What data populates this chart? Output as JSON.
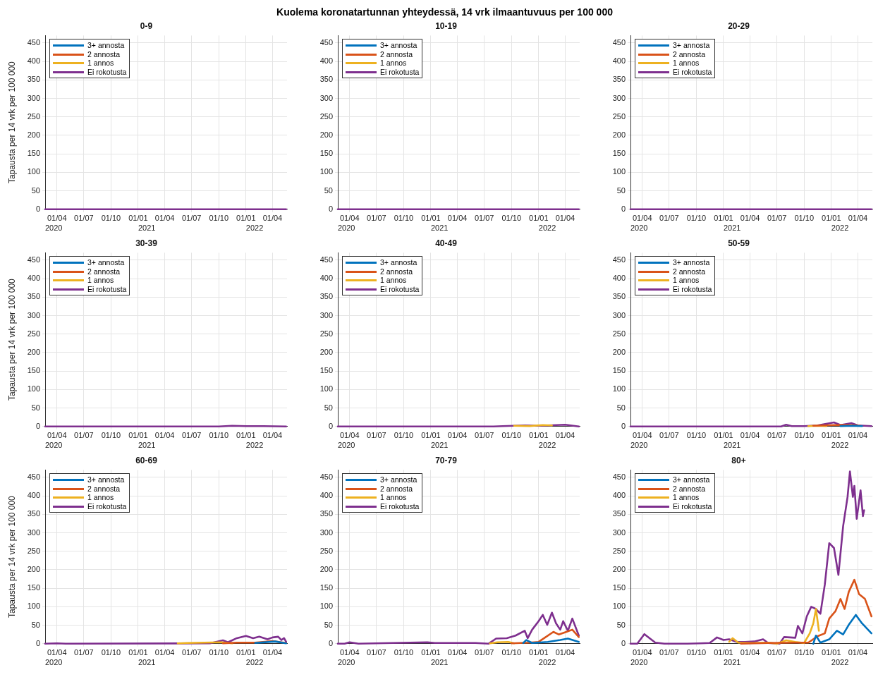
{
  "chart_data": [
    {
      "type": "line",
      "title": "0-9",
      "ylabel": "Tapausta per 14 vrk per 100 000",
      "annotations": [
        "2020",
        "2021",
        "2022",
        "Kuolema koronatartunnan yhteydessä, 14 vrk ilmaantuvuus per 100 000"
      ],
      "xlim": [
        "2020-02-21",
        "2022-05-20"
      ],
      "xticks": [
        {
          "value": "2020-04-01",
          "label": "01/04"
        },
        {
          "value": "2020-07-01",
          "label": "01/07"
        },
        {
          "value": "2020-10-01",
          "label": "01/10"
        },
        {
          "value": "2021-01-01",
          "label": "01/01"
        },
        {
          "value": "2021-04-01",
          "label": "01/04"
        },
        {
          "value": "2021-07-01",
          "label": "01/07"
        },
        {
          "value": "2021-10-01",
          "label": "01/10"
        },
        {
          "value": "2022-01-01",
          "label": "01/01"
        },
        {
          "value": "2022-04-01",
          "label": "01/04"
        }
      ],
      "ylim": [
        0,
        470
      ],
      "yticks": [
        0,
        50,
        100,
        150,
        200,
        250,
        300,
        350,
        400,
        450
      ],
      "grid": true,
      "legend": "top left",
      "series": [
        {
          "name": "3+ annosta",
          "color": "#0072bd"
        },
        {
          "name": "2 annosta",
          "color": "#d95319"
        },
        {
          "name": "1 annos",
          "color": "#edb120"
        },
        {
          "name": "Ei rokotusta",
          "color": "#7e2f8e",
          "x": [
            "2020-02-21",
            "2022-05-17"
          ],
          "values": [
            0,
            0
          ]
        }
      ]
    },
    {
      "type": "line",
      "title": "10-19",
      "annotations": [
        "2020",
        "2021",
        "2022"
      ],
      "xlim": [
        "2020-02-21",
        "2022-05-20"
      ],
      "xticks": [
        {
          "value": "2020-04-01",
          "label": "01/04"
        },
        {
          "value": "2020-07-01",
          "label": "01/07"
        },
        {
          "value": "2020-10-01",
          "label": "01/10"
        },
        {
          "value": "2021-01-01",
          "label": "01/01"
        },
        {
          "value": "2021-04-01",
          "label": "01/04"
        },
        {
          "value": "2021-07-01",
          "label": "01/07"
        },
        {
          "value": "2021-10-01",
          "label": "01/10"
        },
        {
          "value": "2022-01-01",
          "label": "01/01"
        },
        {
          "value": "2022-04-01",
          "label": "01/04"
        }
      ],
      "ylim": [
        0,
        470
      ],
      "yticks": [
        0,
        50,
        100,
        150,
        200,
        250,
        300,
        350,
        400,
        450
      ],
      "grid": true,
      "legend": "top left",
      "series": [
        {
          "name": "3+ annosta",
          "color": "#0072bd"
        },
        {
          "name": "2 annosta",
          "color": "#d95319"
        },
        {
          "name": "1 annos",
          "color": "#edb120"
        },
        {
          "name": "Ei rokotusta",
          "color": "#7e2f8e",
          "x": [
            "2020-02-21",
            "2022-05-17"
          ],
          "values": [
            0,
            0
          ]
        }
      ]
    },
    {
      "type": "line",
      "title": "20-29",
      "annotations": [
        "2020",
        "2021",
        "2022"
      ],
      "xlim": [
        "2020-02-21",
        "2022-05-20"
      ],
      "xticks": [
        {
          "value": "2020-04-01",
          "label": "01/04"
        },
        {
          "value": "2020-07-01",
          "label": "01/07"
        },
        {
          "value": "2020-10-01",
          "label": "01/10"
        },
        {
          "value": "2021-01-01",
          "label": "01/01"
        },
        {
          "value": "2021-04-01",
          "label": "01/04"
        },
        {
          "value": "2021-07-01",
          "label": "01/07"
        },
        {
          "value": "2021-10-01",
          "label": "01/10"
        },
        {
          "value": "2022-01-01",
          "label": "01/01"
        },
        {
          "value": "2022-04-01",
          "label": "01/04"
        }
      ],
      "ylim": [
        0,
        470
      ],
      "yticks": [
        0,
        50,
        100,
        150,
        200,
        250,
        300,
        350,
        400,
        450
      ],
      "grid": true,
      "legend": "top left",
      "series": [
        {
          "name": "3+ annosta",
          "color": "#0072bd"
        },
        {
          "name": "2 annosta",
          "color": "#d95319"
        },
        {
          "name": "1 annos",
          "color": "#edb120"
        },
        {
          "name": "Ei rokotusta",
          "color": "#7e2f8e",
          "x": [
            "2020-02-21",
            "2022-05-17"
          ],
          "values": [
            0,
            0
          ]
        }
      ]
    },
    {
      "type": "line",
      "title": "30-39",
      "ylabel": "Tapausta per 14 vrk per 100 000",
      "annotations": [
        "2020",
        "2021",
        "2022"
      ],
      "xlim": [
        "2020-02-21",
        "2022-05-20"
      ],
      "xticks": [
        {
          "value": "2020-04-01",
          "label": "01/04"
        },
        {
          "value": "2020-07-01",
          "label": "01/07"
        },
        {
          "value": "2020-10-01",
          "label": "01/10"
        },
        {
          "value": "2021-01-01",
          "label": "01/01"
        },
        {
          "value": "2021-04-01",
          "label": "01/04"
        },
        {
          "value": "2021-07-01",
          "label": "01/07"
        },
        {
          "value": "2021-10-01",
          "label": "01/10"
        },
        {
          "value": "2022-01-01",
          "label": "01/01"
        },
        {
          "value": "2022-04-01",
          "label": "01/04"
        }
      ],
      "ylim": [
        0,
        470
      ],
      "yticks": [
        0,
        50,
        100,
        150,
        200,
        250,
        300,
        350,
        400,
        450
      ],
      "grid": true,
      "legend": "top left",
      "series": [
        {
          "name": "3+ annosta",
          "color": "#0072bd"
        },
        {
          "name": "2 annosta",
          "color": "#d95319"
        },
        {
          "name": "1 annos",
          "color": "#edb120"
        },
        {
          "name": "Ei rokotusta",
          "color": "#7e2f8e",
          "x": [
            "2020-02-21",
            "2021-10-01",
            "2021-11-15",
            "2022-01-01",
            "2022-03-01",
            "2022-05-17"
          ],
          "values": [
            0,
            0,
            2,
            1,
            1,
            0
          ]
        }
      ]
    },
    {
      "type": "line",
      "title": "40-49",
      "annotations": [
        "2020",
        "2021",
        "2022"
      ],
      "xlim": [
        "2020-02-21",
        "2022-05-20"
      ],
      "xticks": [
        {
          "value": "2020-04-01",
          "label": "01/04"
        },
        {
          "value": "2020-07-01",
          "label": "01/07"
        },
        {
          "value": "2020-10-01",
          "label": "01/10"
        },
        {
          "value": "2021-01-01",
          "label": "01/01"
        },
        {
          "value": "2021-04-01",
          "label": "01/04"
        },
        {
          "value": "2021-07-01",
          "label": "01/07"
        },
        {
          "value": "2021-10-01",
          "label": "01/10"
        },
        {
          "value": "2022-01-01",
          "label": "01/01"
        },
        {
          "value": "2022-04-01",
          "label": "01/04"
        }
      ],
      "ylim": [
        0,
        470
      ],
      "yticks": [
        0,
        50,
        100,
        150,
        200,
        250,
        300,
        350,
        400,
        450
      ],
      "grid": true,
      "legend": "top left",
      "series": [
        {
          "name": "3+ annosta",
          "color": "#0072bd"
        },
        {
          "name": "2 annosta",
          "color": "#d95319"
        },
        {
          "name": "1 annos",
          "color": "#edb120",
          "x": [
            "2021-10-10",
            "2021-12-01",
            "2022-01-15",
            "2022-02-15"
          ],
          "values": [
            2,
            1,
            4,
            3
          ]
        },
        {
          "name": "Ei rokotusta",
          "color": "#7e2f8e",
          "x": [
            "2020-02-21",
            "2021-08-01",
            "2021-09-01",
            "2021-11-15",
            "2022-01-01",
            "2022-04-01",
            "2022-05-17"
          ],
          "values": [
            0,
            0,
            1,
            3,
            2,
            5,
            0
          ]
        }
      ]
    },
    {
      "type": "line",
      "title": "50-59",
      "annotations": [
        "2020",
        "2021",
        "2022"
      ],
      "xlim": [
        "2020-02-21",
        "2022-05-20"
      ],
      "xticks": [
        {
          "value": "2020-04-01",
          "label": "01/04"
        },
        {
          "value": "2020-07-01",
          "label": "01/07"
        },
        {
          "value": "2020-10-01",
          "label": "01/10"
        },
        {
          "value": "2021-01-01",
          "label": "01/01"
        },
        {
          "value": "2021-04-01",
          "label": "01/04"
        },
        {
          "value": "2021-07-01",
          "label": "01/07"
        },
        {
          "value": "2021-10-01",
          "label": "01/10"
        },
        {
          "value": "2022-01-01",
          "label": "01/01"
        },
        {
          "value": "2022-04-01",
          "label": "01/04"
        }
      ],
      "ylim": [
        0,
        470
      ],
      "yticks": [
        0,
        50,
        100,
        150,
        200,
        250,
        300,
        350,
        400,
        450
      ],
      "grid": true,
      "legend": "top left",
      "series": [
        {
          "name": "3+ annosta",
          "color": "#0072bd",
          "x": [
            "2022-02-01",
            "2022-03-15",
            "2022-04-15"
          ],
          "values": [
            1,
            2,
            1
          ]
        },
        {
          "name": "2 annosta",
          "color": "#d95319",
          "x": [
            "2021-11-01",
            "2022-01-10",
            "2022-03-10",
            "2022-04-10"
          ],
          "values": [
            2,
            4,
            4,
            2
          ]
        },
        {
          "name": "1 annos",
          "color": "#edb120",
          "x": [
            "2021-10-15",
            "2021-11-15",
            "2021-12-15"
          ],
          "values": [
            1,
            2,
            1
          ]
        },
        {
          "name": "Ei rokotusta",
          "color": "#7e2f8e",
          "x": [
            "2020-02-21",
            "2021-07-15",
            "2021-08-01",
            "2021-08-20",
            "2021-10-01",
            "2021-11-15",
            "2022-01-10",
            "2022-02-01",
            "2022-03-10",
            "2022-04-01",
            "2022-05-17"
          ],
          "values": [
            0,
            0,
            5,
            1,
            1,
            3,
            11,
            4,
            9,
            3,
            1
          ]
        }
      ]
    },
    {
      "type": "line",
      "title": "60-69",
      "ylabel": "Tapausta per 14 vrk per 100 000",
      "annotations": [
        "2020",
        "2021",
        "2022"
      ],
      "xlim": [
        "2020-02-21",
        "2022-05-20"
      ],
      "xticks": [
        {
          "value": "2020-04-01",
          "label": "01/04"
        },
        {
          "value": "2020-07-01",
          "label": "01/07"
        },
        {
          "value": "2020-10-01",
          "label": "01/10"
        },
        {
          "value": "2021-01-01",
          "label": "01/01"
        },
        {
          "value": "2021-04-01",
          "label": "01/04"
        },
        {
          "value": "2021-07-01",
          "label": "01/07"
        },
        {
          "value": "2021-10-01",
          "label": "01/10"
        },
        {
          "value": "2022-01-01",
          "label": "01/01"
        },
        {
          "value": "2022-04-01",
          "label": "01/04"
        }
      ],
      "ylim": [
        0,
        470
      ],
      "yticks": [
        0,
        50,
        100,
        150,
        200,
        250,
        300,
        350,
        400,
        450
      ],
      "grid": true,
      "legend": "top left",
      "series": [
        {
          "name": "3+ annosta",
          "color": "#0072bd",
          "x": [
            "2022-02-01",
            "2022-04-10",
            "2022-05-17"
          ],
          "values": [
            2,
            6,
            1
          ]
        },
        {
          "name": "2 annosta",
          "color": "#d95319",
          "x": [
            "2021-10-15",
            "2021-12-01",
            "2022-02-01",
            "2022-04-01",
            "2022-05-17"
          ],
          "values": [
            1,
            3,
            3,
            7,
            2
          ]
        },
        {
          "name": "1 annos",
          "color": "#edb120",
          "x": [
            "2021-05-15",
            "2021-06-15",
            "2021-10-10",
            "2021-11-15"
          ],
          "values": [
            1,
            2,
            4,
            1
          ]
        },
        {
          "name": "Ei rokotusta",
          "color": "#7e2f8e",
          "x": [
            "2020-02-21",
            "2020-04-01",
            "2020-05-01",
            "2021-09-01",
            "2021-10-15",
            "2021-11-01",
            "2021-12-01",
            "2022-01-01",
            "2022-01-25",
            "2022-02-15",
            "2022-03-15",
            "2022-04-01",
            "2022-04-20",
            "2022-05-01",
            "2022-05-10",
            "2022-05-17"
          ],
          "values": [
            0,
            1,
            0,
            1,
            9,
            4,
            15,
            21,
            15,
            19,
            12,
            17,
            19,
            10,
            15,
            5
          ]
        }
      ]
    },
    {
      "type": "line",
      "title": "70-79",
      "annotations": [
        "2020",
        "2021",
        "2022"
      ],
      "xlim": [
        "2020-02-21",
        "2022-05-20"
      ],
      "xticks": [
        {
          "value": "2020-04-01",
          "label": "01/04"
        },
        {
          "value": "2020-07-01",
          "label": "01/07"
        },
        {
          "value": "2020-10-01",
          "label": "01/10"
        },
        {
          "value": "2021-01-01",
          "label": "01/01"
        },
        {
          "value": "2021-04-01",
          "label": "01/04"
        },
        {
          "value": "2021-07-01",
          "label": "01/07"
        },
        {
          "value": "2021-10-01",
          "label": "01/10"
        },
        {
          "value": "2022-01-01",
          "label": "01/01"
        },
        {
          "value": "2022-04-01",
          "label": "01/04"
        }
      ],
      "ylim": [
        0,
        470
      ],
      "yticks": [
        0,
        50,
        100,
        150,
        200,
        250,
        300,
        350,
        400,
        450
      ],
      "grid": true,
      "legend": "top left",
      "series": [
        {
          "name": "3+ annosta",
          "color": "#0072bd",
          "x": [
            "2021-11-10",
            "2021-11-20",
            "2021-12-10",
            "2022-02-01",
            "2022-03-15",
            "2022-04-10",
            "2022-05-17"
          ],
          "values": [
            2,
            10,
            2,
            5,
            10,
            14,
            5
          ]
        },
        {
          "name": "2 annosta",
          "color": "#d95319",
          "x": [
            "2021-10-01",
            "2021-12-01",
            "2022-01-01",
            "2022-01-25",
            "2022-02-20",
            "2022-03-10",
            "2022-04-05",
            "2022-04-25",
            "2022-05-17"
          ],
          "values": [
            1,
            3,
            5,
            18,
            32,
            25,
            32,
            38,
            18
          ]
        },
        {
          "name": "1 annos",
          "color": "#edb120",
          "x": [
            "2021-07-20",
            "2021-08-15",
            "2021-09-20",
            "2021-10-10"
          ],
          "values": [
            1,
            4,
            5,
            1
          ]
        },
        {
          "name": "Ei rokotusta",
          "color": "#7e2f8e",
          "x": [
            "2020-02-21",
            "2020-03-15",
            "2020-04-01",
            "2020-05-01",
            "2020-12-20",
            "2021-01-15",
            "2021-06-01",
            "2021-07-15",
            "2021-08-10",
            "2021-09-15",
            "2021-10-15",
            "2021-11-15",
            "2021-11-25",
            "2021-12-10",
            "2022-01-01",
            "2022-01-15",
            "2022-01-30",
            "2022-02-15",
            "2022-03-01",
            "2022-03-15",
            "2022-03-25",
            "2022-04-10",
            "2022-04-25",
            "2022-05-17"
          ],
          "values": [
            0,
            0,
            4,
            0,
            4,
            2,
            2,
            0,
            14,
            15,
            22,
            35,
            15,
            38,
            61,
            78,
            51,
            84,
            55,
            38,
            61,
            35,
            68,
            22
          ]
        }
      ]
    },
    {
      "type": "line",
      "title": "80+",
      "annotations": [
        "2020",
        "2021",
        "2022"
      ],
      "xlim": [
        "2020-02-21",
        "2022-05-20"
      ],
      "xticks": [
        {
          "value": "2020-04-01",
          "label": "01/04"
        },
        {
          "value": "2020-07-01",
          "label": "01/07"
        },
        {
          "value": "2020-10-01",
          "label": "01/10"
        },
        {
          "value": "2021-01-01",
          "label": "01/01"
        },
        {
          "value": "2021-04-01",
          "label": "01/04"
        },
        {
          "value": "2021-07-01",
          "label": "01/07"
        },
        {
          "value": "2021-10-01",
          "label": "01/10"
        },
        {
          "value": "2022-01-01",
          "label": "01/01"
        },
        {
          "value": "2022-04-01",
          "label": "01/04"
        }
      ],
      "ylim": [
        0,
        470
      ],
      "yticks": [
        0,
        50,
        100,
        150,
        200,
        250,
        300,
        350,
        400,
        450
      ],
      "grid": true,
      "legend": "top left",
      "series": [
        {
          "name": "3+ annosta",
          "color": "#0072bd",
          "x": [
            "2021-11-01",
            "2021-11-10",
            "2021-11-25",
            "2021-12-25",
            "2022-01-20",
            "2022-02-10",
            "2022-03-01",
            "2022-03-25",
            "2022-04-15",
            "2022-05-17"
          ],
          "values": [
            0,
            22,
            3,
            12,
            35,
            25,
            51,
            78,
            55,
            28
          ]
        },
        {
          "name": "2 annosta",
          "color": "#d95319",
          "x": [
            "2021-03-01",
            "2021-06-01",
            "2021-09-01",
            "2021-10-15",
            "2021-11-15",
            "2021-12-10",
            "2021-12-25",
            "2022-01-15",
            "2022-02-01",
            "2022-02-15",
            "2022-03-01",
            "2022-03-20",
            "2022-04-05",
            "2022-04-25",
            "2022-05-17"
          ],
          "values": [
            0,
            2,
            3,
            3,
            20,
            28,
            68,
            88,
            121,
            94,
            140,
            173,
            134,
            121,
            74
          ]
        },
        {
          "name": "1 annos",
          "color": "#edb120",
          "x": [
            "2021-01-20",
            "2021-02-01",
            "2021-02-20",
            "2021-04-01",
            "2021-06-01",
            "2021-07-01",
            "2021-08-01",
            "2021-09-01",
            "2021-10-01",
            "2021-10-20",
            "2021-11-01",
            "2021-11-10",
            "2021-11-20"
          ],
          "values": [
            5,
            15,
            3,
            2,
            3,
            0,
            9,
            5,
            2,
            28,
            55,
            94,
            35
          ]
        },
        {
          "name": "Ei rokotusta",
          "color": "#7e2f8e",
          "x": [
            "2020-02-21",
            "2020-03-15",
            "2020-04-08",
            "2020-05-15",
            "2020-06-15",
            "2020-09-01",
            "2020-10-15",
            "2020-11-15",
            "2020-12-10",
            "2021-01-01",
            "2021-01-20",
            "2021-02-15",
            "2021-03-15",
            "2021-04-15",
            "2021-05-15",
            "2021-06-01",
            "2021-07-10",
            "2021-07-25",
            "2021-08-15",
            "2021-09-01",
            "2021-09-10",
            "2021-09-25",
            "2021-10-10",
            "2021-10-25",
            "2021-11-10",
            "2021-11-25",
            "2021-12-10",
            "2021-12-25",
            "2022-01-10",
            "2022-01-25",
            "2022-02-10",
            "2022-02-25",
            "2022-03-05",
            "2022-03-15",
            "2022-03-20",
            "2022-03-28",
            "2022-04-10",
            "2022-04-18",
            "2022-04-22"
          ],
          "values": [
            0,
            0,
            26,
            3,
            0,
            0,
            1,
            2,
            17,
            10,
            12,
            5,
            5,
            6,
            12,
            2,
            0,
            18,
            17,
            16,
            48,
            28,
            74,
            100,
            94,
            81,
            160,
            272,
            259,
            186,
            318,
            397,
            466,
            397,
            427,
            338,
            415,
            345,
            361
          ]
        }
      ]
    }
  ]
}
